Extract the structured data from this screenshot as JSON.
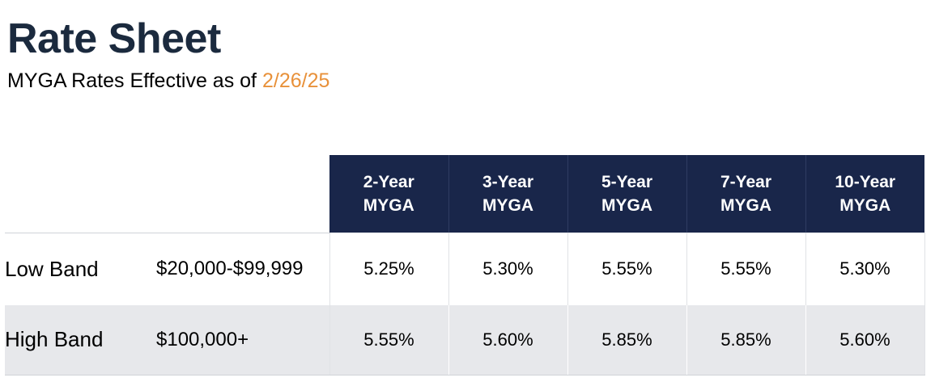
{
  "header": {
    "title": "Rate Sheet",
    "subtitle_prefix": "MYGA Rates Effective as of ",
    "effective_date": "2/26/25",
    "date_color": "#e8913a",
    "title_color": "#1b2a3e"
  },
  "table": {
    "header_bg": "#19264a",
    "columns": [
      {
        "line1": "2-Year",
        "line2": "MYGA"
      },
      {
        "line1": "3-Year",
        "line2": "MYGA"
      },
      {
        "line1": "5-Year",
        "line2": "MYGA"
      },
      {
        "line1": "7-Year",
        "line2": "MYGA"
      },
      {
        "line1": "10-Year",
        "line2": "MYGA"
      }
    ],
    "rows": [
      {
        "band": "Low Band",
        "range": "$20,000-$99,999",
        "rates": [
          "5.25%",
          "5.30%",
          "5.55%",
          "5.55%",
          "5.30%"
        ]
      },
      {
        "band": "High Band",
        "range": "$100,000+",
        "rates": [
          "5.55%",
          "5.60%",
          "5.85%",
          "5.85%",
          "5.60%"
        ]
      }
    ]
  }
}
